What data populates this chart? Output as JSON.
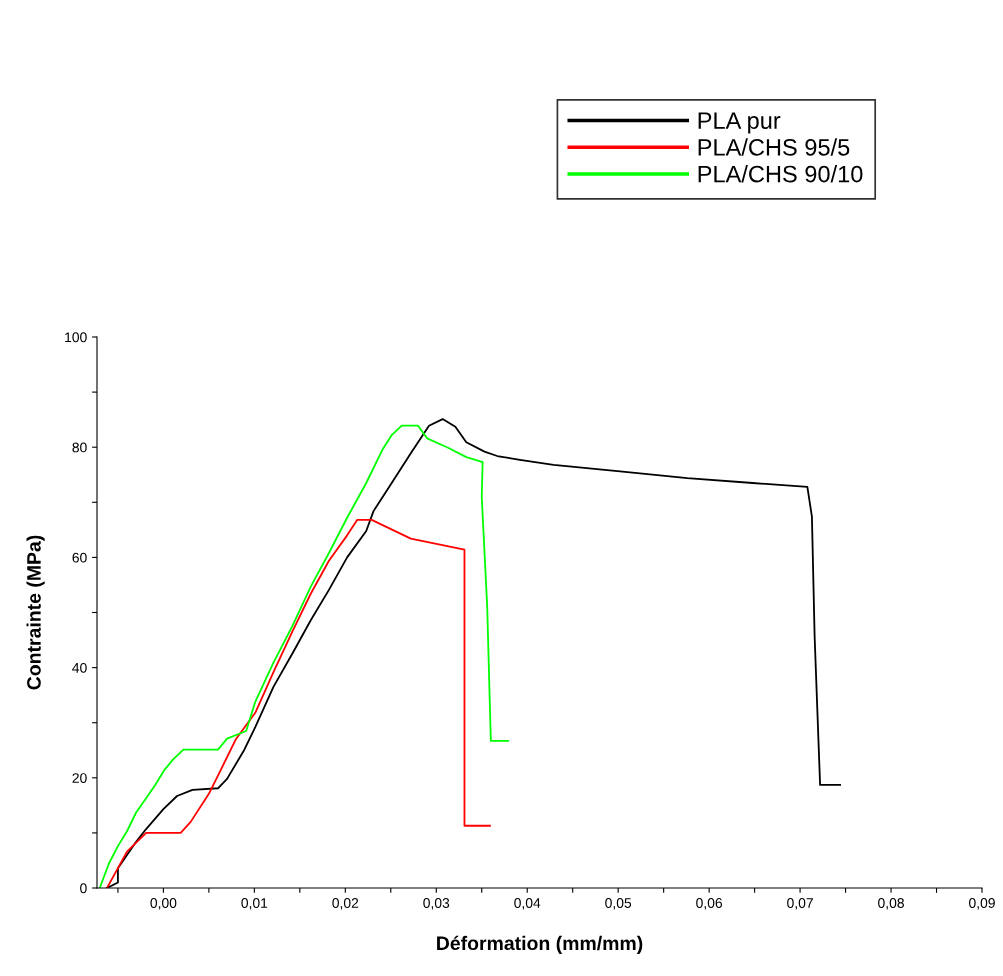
{
  "chart_data": {
    "type": "line",
    "xlabel": "Déformation (mm/mm)",
    "ylabel": "Contrainte (MPa)",
    "xlim": [
      -0.0073,
      0.09
    ],
    "ylim": [
      0,
      100
    ],
    "xticks": [
      {
        "value": -0.005,
        "label": null
      },
      {
        "value": 0,
        "label": "0,00"
      },
      {
        "value": 0.005,
        "label": null
      },
      {
        "value": 0.01,
        "label": "0,01"
      },
      {
        "value": 0.015,
        "label": null
      },
      {
        "value": 0.02,
        "label": "0,02"
      },
      {
        "value": 0.025,
        "label": null
      },
      {
        "value": 0.03,
        "label": "0,03"
      },
      {
        "value": 0.035,
        "label": null
      },
      {
        "value": 0.04,
        "label": "0,04"
      },
      {
        "value": 0.045,
        "label": null
      },
      {
        "value": 0.05,
        "label": "0,05"
      },
      {
        "value": 0.055,
        "label": null
      },
      {
        "value": 0.06,
        "label": "0,06"
      },
      {
        "value": 0.065,
        "label": null
      },
      {
        "value": 0.07,
        "label": "0,07"
      },
      {
        "value": 0.075,
        "label": null
      },
      {
        "value": 0.08,
        "label": "0,08"
      },
      {
        "value": 0.085,
        "label": null
      },
      {
        "value": 0.09,
        "label": "0,09"
      }
    ],
    "yticks": [
      0,
      {
        "value": 10,
        "label": null
      },
      20,
      {
        "value": 30,
        "label": null
      },
      40,
      {
        "value": 50,
        "label": null
      },
      60,
      {
        "value": 70,
        "label": null
      },
      80,
      {
        "value": 90,
        "label": null
      },
      100
    ],
    "grid": false,
    "legend": "top right",
    "marker": "none",
    "line_style": "solid",
    "series": [
      {
        "name": "PLA pur",
        "color": "#000000",
        "x": [
          -0.0062,
          -0.005,
          -0.005,
          -0.003,
          -0.0019,
          0.0,
          0.0015,
          0.0032,
          0.006,
          0.007,
          0.0089,
          0.0101,
          0.0121,
          0.0142,
          0.0162,
          0.0182,
          0.0202,
          0.0223,
          0.0231,
          0.0251,
          0.0272,
          0.0292,
          0.0307,
          0.0321,
          0.0333,
          0.0353,
          0.0367,
          0.0392,
          0.0429,
          0.0502,
          0.0576,
          0.0648,
          0.0708,
          0.0713,
          0.0716,
          0.0722,
          0.0744
        ],
        "values": [
          0,
          1,
          3.6,
          8.4,
          10.7,
          14.3,
          16.7,
          17.8,
          18.1,
          19.8,
          25.1,
          29.2,
          36.5,
          42.6,
          48.6,
          54.1,
          60.0,
          64.8,
          68.4,
          73.5,
          78.9,
          83.9,
          85.1,
          83.7,
          80.9,
          79.2,
          78.4,
          77.7,
          76.8,
          75.6,
          74.4,
          73.5,
          72.8,
          67.4,
          45.6,
          18.7,
          18.7
        ]
      },
      {
        "name": "PLA/CHS 95/5",
        "color": "#ff0000",
        "x": [
          -0.0062,
          -0.005,
          -0.004,
          -0.0019,
          0.0019,
          0.003,
          0.005,
          0.006,
          0.008,
          0.0101,
          0.0121,
          0.0142,
          0.0162,
          0.0182,
          0.0202,
          0.0213,
          0.0229,
          0.0272,
          0.0331,
          0.0331,
          0.0359
        ],
        "values": [
          0,
          3.6,
          6.6,
          10.0,
          10.0,
          12.0,
          17.1,
          20.4,
          27.1,
          31.8,
          39.2,
          46.6,
          53.4,
          59.4,
          64.0,
          66.8,
          66.8,
          63.4,
          61.4,
          11.3,
          11.3
        ]
      },
      {
        "name": "PLA/CHS 90/10",
        "color": "#00ff00",
        "x": [
          -0.007,
          -0.006,
          -0.005,
          -0.004,
          -0.003,
          -0.0019,
          -0.0009,
          0.0001,
          0.0011,
          0.0022,
          0.006,
          0.007,
          0.0091,
          0.0101,
          0.0121,
          0.0142,
          0.0162,
          0.0182,
          0.0202,
          0.0223,
          0.0241,
          0.0251,
          0.0262,
          0.028,
          0.029,
          0.0313,
          0.0333,
          0.0351,
          0.035,
          0.0356,
          0.036,
          0.0379
        ],
        "values": [
          0,
          4.4,
          7.6,
          10.3,
          13.7,
          16.3,
          18.7,
          21.4,
          23.4,
          25.1,
          25.1,
          27.1,
          28.5,
          33.8,
          40.9,
          47.6,
          54.7,
          60.8,
          67.2,
          73.5,
          79.6,
          82.2,
          83.9,
          83.9,
          81.6,
          79.9,
          78.2,
          77.3,
          71.0,
          51.1,
          26.7,
          26.7
        ]
      }
    ]
  }
}
